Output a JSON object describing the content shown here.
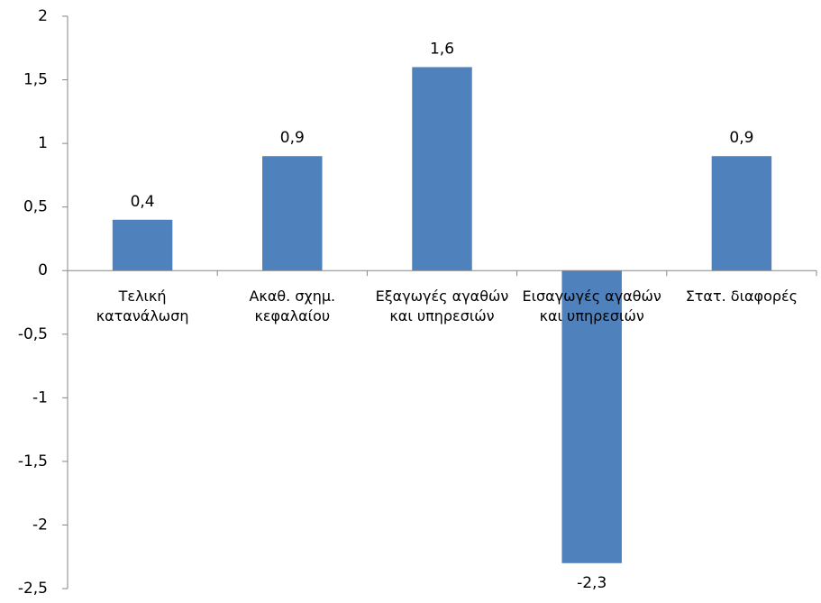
{
  "chart_data": {
    "type": "bar",
    "categories": [
      "Τελική κατανάλωση",
      "Ακαθ. σχημ. κεφαλαίου",
      "Εξαγωγές αγαθών και υπηρεσιών",
      "Εισαγωγές αγαθών και υπηρεσιών",
      "Στατ. διαφορές"
    ],
    "values": [
      0.4,
      0.9,
      1.6,
      -2.3,
      0.9
    ],
    "value_labels": [
      "0,4",
      "0,9",
      "1,6",
      "-2,3",
      "0,9"
    ],
    "color": "#4f81bd",
    "ylim": [
      -2.5,
      2
    ],
    "yticks": [
      {
        "value": -2.5,
        "label": "-2,5"
      },
      -2,
      {
        "value": -1.5,
        "label": "-1,5"
      },
      -1,
      {
        "value": -0.5,
        "label": "-0,5"
      },
      0,
      {
        "value": 0.5,
        "label": "0,5"
      },
      1,
      {
        "value": 1.5,
        "label": "1,5"
      },
      2
    ],
    "grid": false
  }
}
